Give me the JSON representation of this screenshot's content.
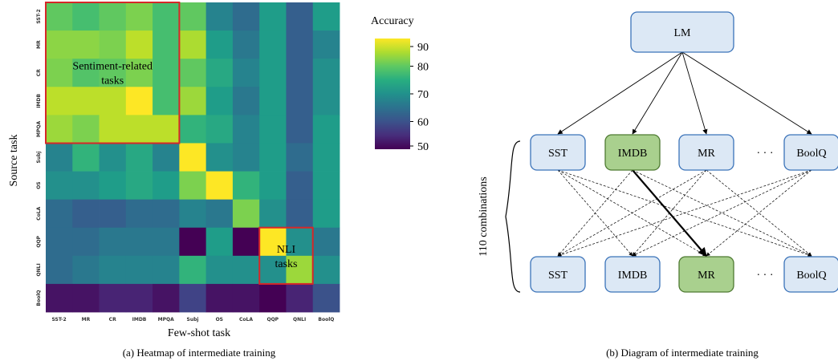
{
  "chart_data": {
    "type": "heatmap",
    "title": "",
    "xlabel": "Few-shot task",
    "ylabel": "Source task",
    "x_categories": [
      "SST-2",
      "MR",
      "CR",
      "IMDB",
      "MPQA",
      "Subj",
      "OS",
      "CoLA",
      "QQP",
      "QNLI",
      "BoolQ"
    ],
    "y_categories": [
      "SST-2",
      "MR",
      "CR",
      "IMDB",
      "MPQA",
      "Subj",
      "OS",
      "CoLA",
      "QQP",
      "QNLI",
      "BoolQ"
    ],
    "values": [
      [
        80,
        78,
        80,
        82,
        78,
        80,
        68,
        64,
        72,
        62,
        72
      ],
      [
        83,
        83,
        82,
        86,
        78,
        85,
        72,
        66,
        72,
        62,
        68
      ],
      [
        82,
        79,
        80,
        82,
        78,
        80,
        74,
        68,
        72,
        62,
        70
      ],
      [
        86,
        86,
        86,
        92,
        78,
        84,
        72,
        66,
        72,
        62,
        70
      ],
      [
        84,
        82,
        86,
        86,
        86,
        76,
        74,
        68,
        72,
        62,
        72
      ],
      [
        68,
        76,
        70,
        74,
        68,
        92,
        70,
        68,
        72,
        64,
        72
      ],
      [
        70,
        70,
        72,
        74,
        72,
        82,
        90,
        76,
        72,
        62,
        72
      ],
      [
        64,
        62,
        62,
        64,
        64,
        68,
        66,
        82,
        70,
        62,
        72
      ],
      [
        64,
        64,
        66,
        66,
        66,
        50,
        72,
        50,
        90,
        70,
        66
      ],
      [
        64,
        66,
        68,
        68,
        68,
        76,
        70,
        70,
        70,
        84,
        70
      ],
      [
        52,
        52,
        54,
        54,
        52,
        58,
        52,
        52,
        50,
        54,
        60
      ]
    ],
    "colorbar": {
      "label": "Accuracy",
      "min": 50,
      "max": 90,
      "ticks": [
        "90",
        "80",
        "70",
        "60",
        "50"
      ],
      "colormap": "viridis"
    },
    "annotations": [
      {
        "text_lines": [
          "Sentiment-related",
          "tasks"
        ],
        "box_cols": [
          0,
          4
        ],
        "box_rows": [
          0,
          4
        ]
      },
      {
        "text_lines": [
          "NLI",
          "tasks"
        ],
        "box_cols": [
          8,
          9
        ],
        "box_rows": [
          8,
          9
        ]
      }
    ],
    "highlight_color": "#d62728"
  },
  "captions": {
    "left": "(a) Heatmap of intermediate training",
    "right": "(b) Diagram of intermediate training"
  },
  "diagram": {
    "root": "LM",
    "combinations_label": "110 combinations",
    "ellipsis": "· · ·",
    "source_nodes": [
      {
        "label": "SST",
        "highlight": false
      },
      {
        "label": "IMDB",
        "highlight": true
      },
      {
        "label": "MR",
        "highlight": false
      },
      {
        "label": "BoolQ",
        "highlight": false
      }
    ],
    "target_nodes": [
      {
        "label": "SST",
        "highlight": false
      },
      {
        "label": "IMDB",
        "highlight": false
      },
      {
        "label": "MR",
        "highlight": true
      },
      {
        "label": "BoolQ",
        "highlight": false
      }
    ],
    "colors": {
      "node_fill": "#dce8f5",
      "node_stroke": "#3b73b9",
      "highlight_fill": "#a9d08e",
      "highlight_stroke": "#4e7a32"
    }
  }
}
